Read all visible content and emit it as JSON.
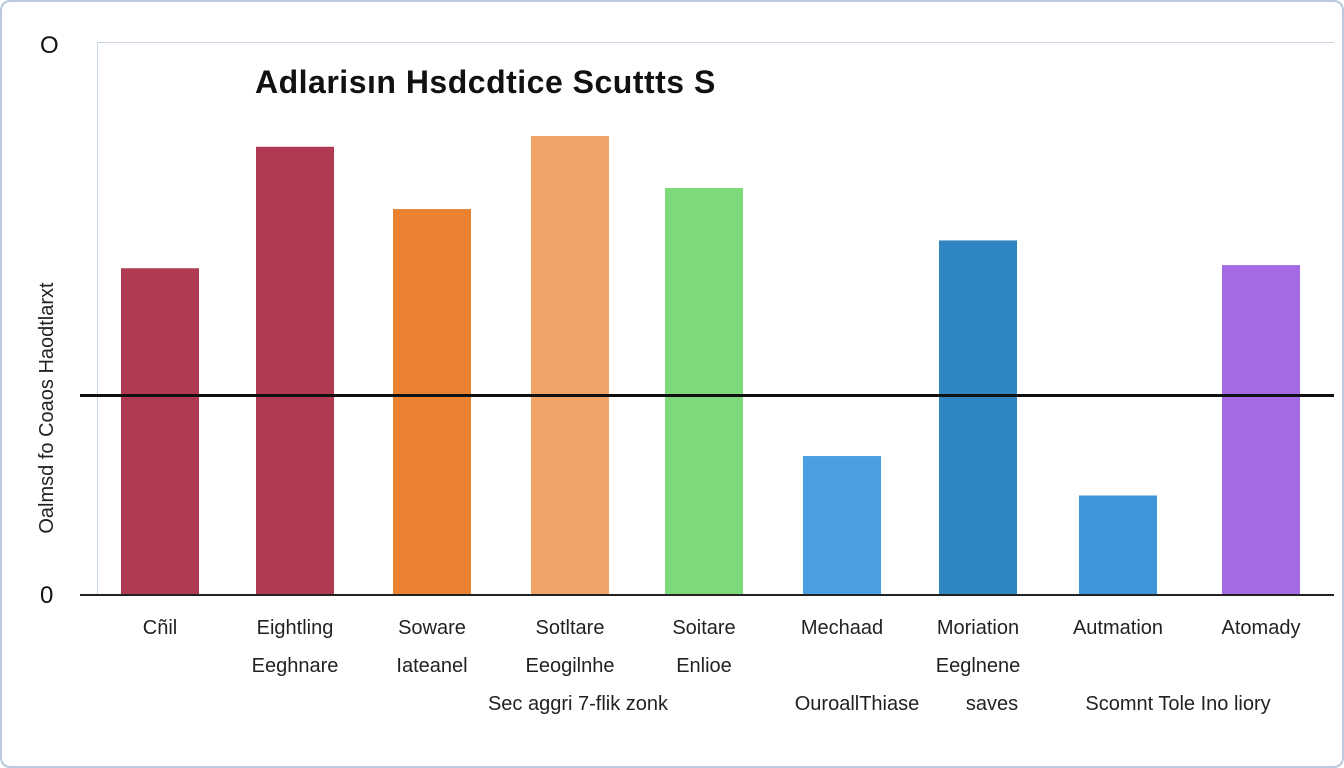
{
  "chart_data": {
    "type": "bar",
    "title": "Adlarisın Hsdcdtice Scuttts S",
    "ylabel": "Oalmsd fo Coaos Haodtlarxt",
    "yticks": [
      "0",
      "O"
    ],
    "ylim": [
      0,
      100
    ],
    "reference_line": 44.5,
    "categories": [
      {
        "lines": [
          "Cñil",
          ""
        ]
      },
      {
        "lines": [
          "Eightling",
          "Eeghnare"
        ]
      },
      {
        "lines": [
          "Soware",
          "Iateanel"
        ]
      },
      {
        "lines": [
          "Sotltare",
          "Eeogilnhe"
        ]
      },
      {
        "lines": [
          "Soitare",
          "Enlioe"
        ]
      },
      {
        "lines": [
          "Mechaad",
          ""
        ]
      },
      {
        "lines": [
          "Moriation",
          "Eeglnene"
        ]
      },
      {
        "lines": [
          "Autmation",
          ""
        ]
      },
      {
        "lines": [
          "Atomady",
          ""
        ]
      }
    ],
    "bottom_row": [
      "Sec aggri 7-flik zonk",
      "OuroallThiase",
      "saves",
      "Scomnt Tole Ino liory"
    ],
    "values": [
      72.9,
      100,
      86.1,
      102.4,
      90.8,
      31.0,
      79.1,
      22.2,
      73.6
    ],
    "colors": [
      "#b03a52",
      "#b03a52",
      "#ea8232",
      "#f0a468",
      "#7ed97a",
      "#4b9fe0",
      "#2f86c0",
      "#3f95d8",
      "#a46ae6"
    ]
  }
}
